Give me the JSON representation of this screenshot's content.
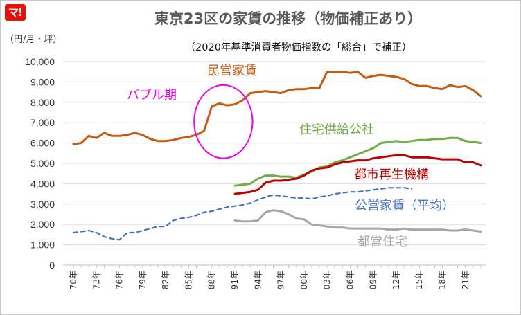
{
  "logo": {
    "text": "マ!",
    "color": "#e5140a"
  },
  "chart_data": {
    "type": "line",
    "title": "東京23区の家賃の推移（物価補正あり）",
    "subtitle": "（2020年基準消費者物価指数の「総合」で補正）",
    "ylabel": "（円/月・坪）",
    "ylim": [
      0,
      10000
    ],
    "y_ticks": [
      "0",
      "1,000",
      "2,000",
      "3,000",
      "4,000",
      "5,000",
      "6,000",
      "7,000",
      "8,000",
      "9,000",
      "10,000"
    ],
    "x_range": [
      1970,
      2023
    ],
    "x_ticks": [
      "70年",
      "73年",
      "76年",
      "79年",
      "82年",
      "85年",
      "88年",
      "91年",
      "94年",
      "97年",
      "00年",
      "03年",
      "06年",
      "09年",
      "12年",
      "15年",
      "18年",
      "21年"
    ],
    "grid": true,
    "annotation": {
      "text": "バブル期",
      "color": "#ee00ee",
      "circle_center": [
        1989.5,
        7050
      ],
      "circle_radius_x_years": 3.8,
      "circle_radius_y_value": 1800
    },
    "series": [
      {
        "name": "民営家賃",
        "color": "#c55a11",
        "style": "solid",
        "points": [
          [
            1970,
            5950
          ],
          [
            1971,
            6000
          ],
          [
            1972,
            6350
          ],
          [
            1973,
            6250
          ],
          [
            1974,
            6500
          ],
          [
            1975,
            6350
          ],
          [
            1976,
            6350
          ],
          [
            1977,
            6400
          ],
          [
            1978,
            6500
          ],
          [
            1979,
            6400
          ],
          [
            1980,
            6200
          ],
          [
            1981,
            6100
          ],
          [
            1982,
            6100
          ],
          [
            1983,
            6150
          ],
          [
            1984,
            6250
          ],
          [
            1985,
            6300
          ],
          [
            1986,
            6400
          ],
          [
            1987,
            6600
          ],
          [
            1988,
            7800
          ],
          [
            1989,
            7950
          ],
          [
            1990,
            7850
          ],
          [
            1991,
            7900
          ],
          [
            1992,
            8100
          ],
          [
            1993,
            8450
          ],
          [
            1994,
            8500
          ],
          [
            1995,
            8550
          ],
          [
            1996,
            8500
          ],
          [
            1997,
            8450
          ],
          [
            1998,
            8600
          ],
          [
            1999,
            8650
          ],
          [
            2000,
            8650
          ],
          [
            2001,
            8700
          ],
          [
            2002,
            8700
          ],
          [
            2003,
            9500
          ],
          [
            2004,
            9500
          ],
          [
            2005,
            9500
          ],
          [
            2006,
            9450
          ],
          [
            2007,
            9500
          ],
          [
            2008,
            9200
          ],
          [
            2009,
            9300
          ],
          [
            2010,
            9350
          ],
          [
            2011,
            9300
          ],
          [
            2012,
            9250
          ],
          [
            2013,
            9150
          ],
          [
            2014,
            8900
          ],
          [
            2015,
            8800
          ],
          [
            2016,
            8800
          ],
          [
            2017,
            8700
          ],
          [
            2018,
            8650
          ],
          [
            2019,
            8850
          ],
          [
            2020,
            8750
          ],
          [
            2021,
            8800
          ],
          [
            2022,
            8600
          ],
          [
            2023,
            8300
          ]
        ]
      },
      {
        "name": "住宅供給公社",
        "color": "#70ad47",
        "style": "solid",
        "points": [
          [
            1991,
            3900
          ],
          [
            1992,
            3950
          ],
          [
            1993,
            4000
          ],
          [
            1994,
            4250
          ],
          [
            1995,
            4400
          ],
          [
            1996,
            4400
          ],
          [
            1997,
            4350
          ],
          [
            1998,
            4350
          ],
          [
            1999,
            4300
          ],
          [
            2000,
            4450
          ],
          [
            2001,
            4600
          ],
          [
            2002,
            4800
          ],
          [
            2003,
            4850
          ],
          [
            2004,
            5050
          ],
          [
            2005,
            5150
          ],
          [
            2006,
            5300
          ],
          [
            2007,
            5450
          ],
          [
            2008,
            5600
          ],
          [
            2009,
            5750
          ],
          [
            2010,
            6000
          ],
          [
            2011,
            6050
          ],
          [
            2012,
            6100
          ],
          [
            2013,
            6050
          ],
          [
            2014,
            6100
          ],
          [
            2015,
            6150
          ],
          [
            2016,
            6150
          ],
          [
            2017,
            6200
          ],
          [
            2018,
            6200
          ],
          [
            2019,
            6250
          ],
          [
            2020,
            6250
          ],
          [
            2021,
            6100
          ],
          [
            2022,
            6050
          ],
          [
            2023,
            6000
          ]
        ]
      },
      {
        "name": "都市再生機構",
        "color": "#c00000",
        "style": "solid",
        "points": [
          [
            1991,
            3500
          ],
          [
            1992,
            3550
          ],
          [
            1993,
            3600
          ],
          [
            1994,
            3700
          ],
          [
            1995,
            4050
          ],
          [
            1996,
            4150
          ],
          [
            1997,
            4150
          ],
          [
            1998,
            4200
          ],
          [
            1999,
            4250
          ],
          [
            2000,
            4400
          ],
          [
            2001,
            4650
          ],
          [
            2002,
            4750
          ],
          [
            2003,
            4800
          ],
          [
            2004,
            4950
          ],
          [
            2005,
            5050
          ],
          [
            2006,
            5100
          ],
          [
            2007,
            5150
          ],
          [
            2008,
            5150
          ],
          [
            2009,
            5250
          ],
          [
            2010,
            5300
          ],
          [
            2011,
            5350
          ],
          [
            2012,
            5400
          ],
          [
            2013,
            5400
          ],
          [
            2014,
            5300
          ],
          [
            2015,
            5300
          ],
          [
            2016,
            5300
          ],
          [
            2017,
            5250
          ],
          [
            2018,
            5200
          ],
          [
            2019,
            5200
          ],
          [
            2020,
            5200
          ],
          [
            2021,
            5050
          ],
          [
            2022,
            5050
          ],
          [
            2023,
            4900
          ]
        ]
      },
      {
        "name": "公営家賃（平均）",
        "color": "#4472c4",
        "style": "dashed",
        "points": [
          [
            1970,
            1600
          ],
          [
            1971,
            1650
          ],
          [
            1972,
            1700
          ],
          [
            1973,
            1600
          ],
          [
            1974,
            1400
          ],
          [
            1975,
            1300
          ],
          [
            1976,
            1250
          ],
          [
            1977,
            1600
          ],
          [
            1978,
            1600
          ],
          [
            1979,
            1700
          ],
          [
            1980,
            1800
          ],
          [
            1981,
            1900
          ],
          [
            1982,
            1900
          ],
          [
            1983,
            2200
          ],
          [
            1984,
            2300
          ],
          [
            1985,
            2350
          ],
          [
            1986,
            2450
          ],
          [
            1987,
            2600
          ],
          [
            1988,
            2650
          ],
          [
            1989,
            2750
          ],
          [
            1990,
            2850
          ],
          [
            1991,
            2900
          ],
          [
            1992,
            2950
          ],
          [
            1993,
            3050
          ],
          [
            1994,
            3200
          ],
          [
            1995,
            3350
          ],
          [
            1996,
            3450
          ],
          [
            1997,
            3400
          ],
          [
            1998,
            3350
          ],
          [
            1999,
            3300
          ],
          [
            2000,
            3300
          ],
          [
            2001,
            3250
          ],
          [
            2002,
            3350
          ],
          [
            2003,
            3400
          ],
          [
            2004,
            3500
          ],
          [
            2005,
            3550
          ],
          [
            2006,
            3600
          ],
          [
            2007,
            3600
          ],
          [
            2008,
            3650
          ],
          [
            2009,
            3700
          ],
          [
            2010,
            3750
          ],
          [
            2011,
            3800
          ],
          [
            2012,
            3800
          ],
          [
            2013,
            3800
          ],
          [
            2014,
            3750
          ]
        ]
      },
      {
        "name": "都営住宅",
        "color": "#a6a6a6",
        "style": "solid",
        "points": [
          [
            1991,
            2200
          ],
          [
            1992,
            2150
          ],
          [
            1993,
            2150
          ],
          [
            1994,
            2200
          ],
          [
            1995,
            2600
          ],
          [
            1996,
            2700
          ],
          [
            1997,
            2650
          ],
          [
            1998,
            2500
          ],
          [
            1999,
            2300
          ],
          [
            2000,
            2250
          ],
          [
            2001,
            2000
          ],
          [
            2002,
            1950
          ],
          [
            2003,
            1900
          ],
          [
            2004,
            1850
          ],
          [
            2005,
            1850
          ],
          [
            2006,
            1800
          ],
          [
            2007,
            1800
          ],
          [
            2008,
            1800
          ],
          [
            2009,
            1800
          ],
          [
            2010,
            1800
          ],
          [
            2011,
            1750
          ],
          [
            2012,
            1750
          ],
          [
            2013,
            1800
          ],
          [
            2014,
            1750
          ],
          [
            2015,
            1750
          ],
          [
            2016,
            1750
          ],
          [
            2017,
            1750
          ],
          [
            2018,
            1750
          ],
          [
            2019,
            1700
          ],
          [
            2020,
            1700
          ],
          [
            2021,
            1750
          ],
          [
            2022,
            1700
          ],
          [
            2023,
            1650
          ]
        ]
      }
    ]
  }
}
